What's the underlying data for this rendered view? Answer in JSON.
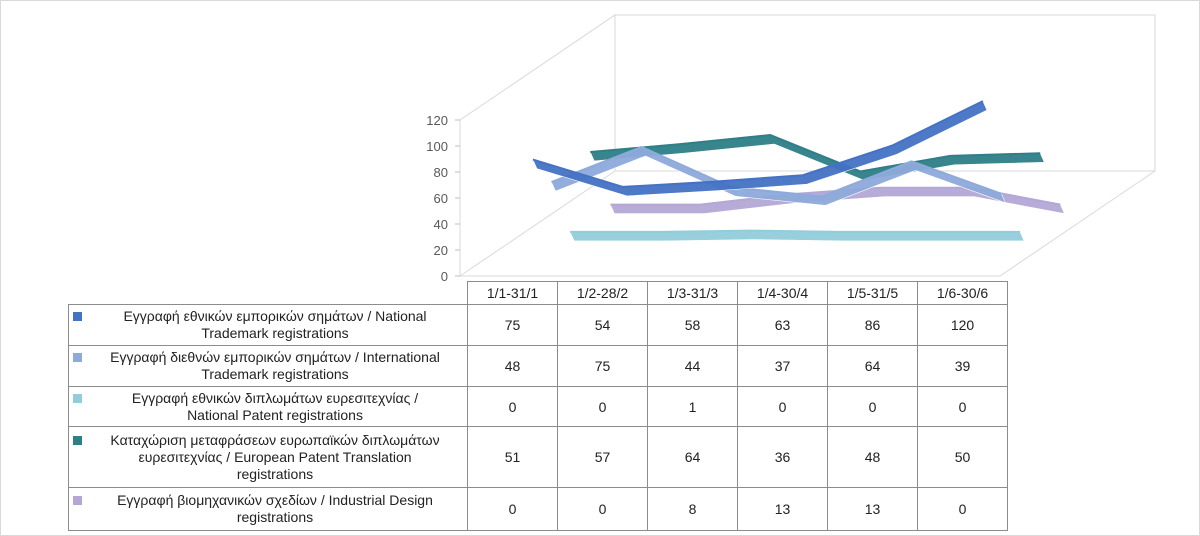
{
  "chart_data": {
    "type": "line",
    "categories": [
      "1/1-31/1",
      "1/2-28/2",
      "1/3-31/3",
      "1/4-30/4",
      "1/5-31/5",
      "1/6-30/6"
    ],
    "ylim": [
      0,
      120
    ],
    "yticks": [
      "0",
      "20",
      "40",
      "60",
      "80",
      "100",
      "120"
    ],
    "grid": false,
    "legend": "data-table",
    "series": [
      {
        "name_line1": "Εγγραφή εθνικών εμπορικών σημάτων / National",
        "name_line2": "Trademark registrations",
        "color": "#4472c4",
        "values": [
          75,
          54,
          58,
          63,
          86,
          120
        ]
      },
      {
        "name_line1": "Εγγραφή διεθνών εμπορικών σημάτων / International",
        "name_line2": "Trademark registrations",
        "color": "#8eaadb",
        "values": [
          48,
          75,
          44,
          37,
          64,
          39
        ]
      },
      {
        "name_line1": "Εγγραφή εθνικών διπλωμάτων ευρεσιτεχνίας /",
        "name_line2": "National Patent registrations",
        "color": "#92cddc",
        "values": [
          0,
          0,
          1,
          0,
          0,
          0
        ]
      },
      {
        "name_line1": "Καταχώριση μεταφράσεων ευρωπαϊκών διπλωμάτων",
        "name_line2": "ευρεσιτεχνίας / European Patent Translation",
        "name_line3": "registrations",
        "color": "#2e7f87",
        "values": [
          51,
          57,
          64,
          36,
          48,
          50
        ]
      },
      {
        "name_line1": "Εγγραφή βιομηχανικών σχεδίων / Industrial Design",
        "name_line2": "registrations",
        "color": "#b4a7d6",
        "values": [
          0,
          0,
          8,
          13,
          13,
          0
        ]
      }
    ]
  }
}
